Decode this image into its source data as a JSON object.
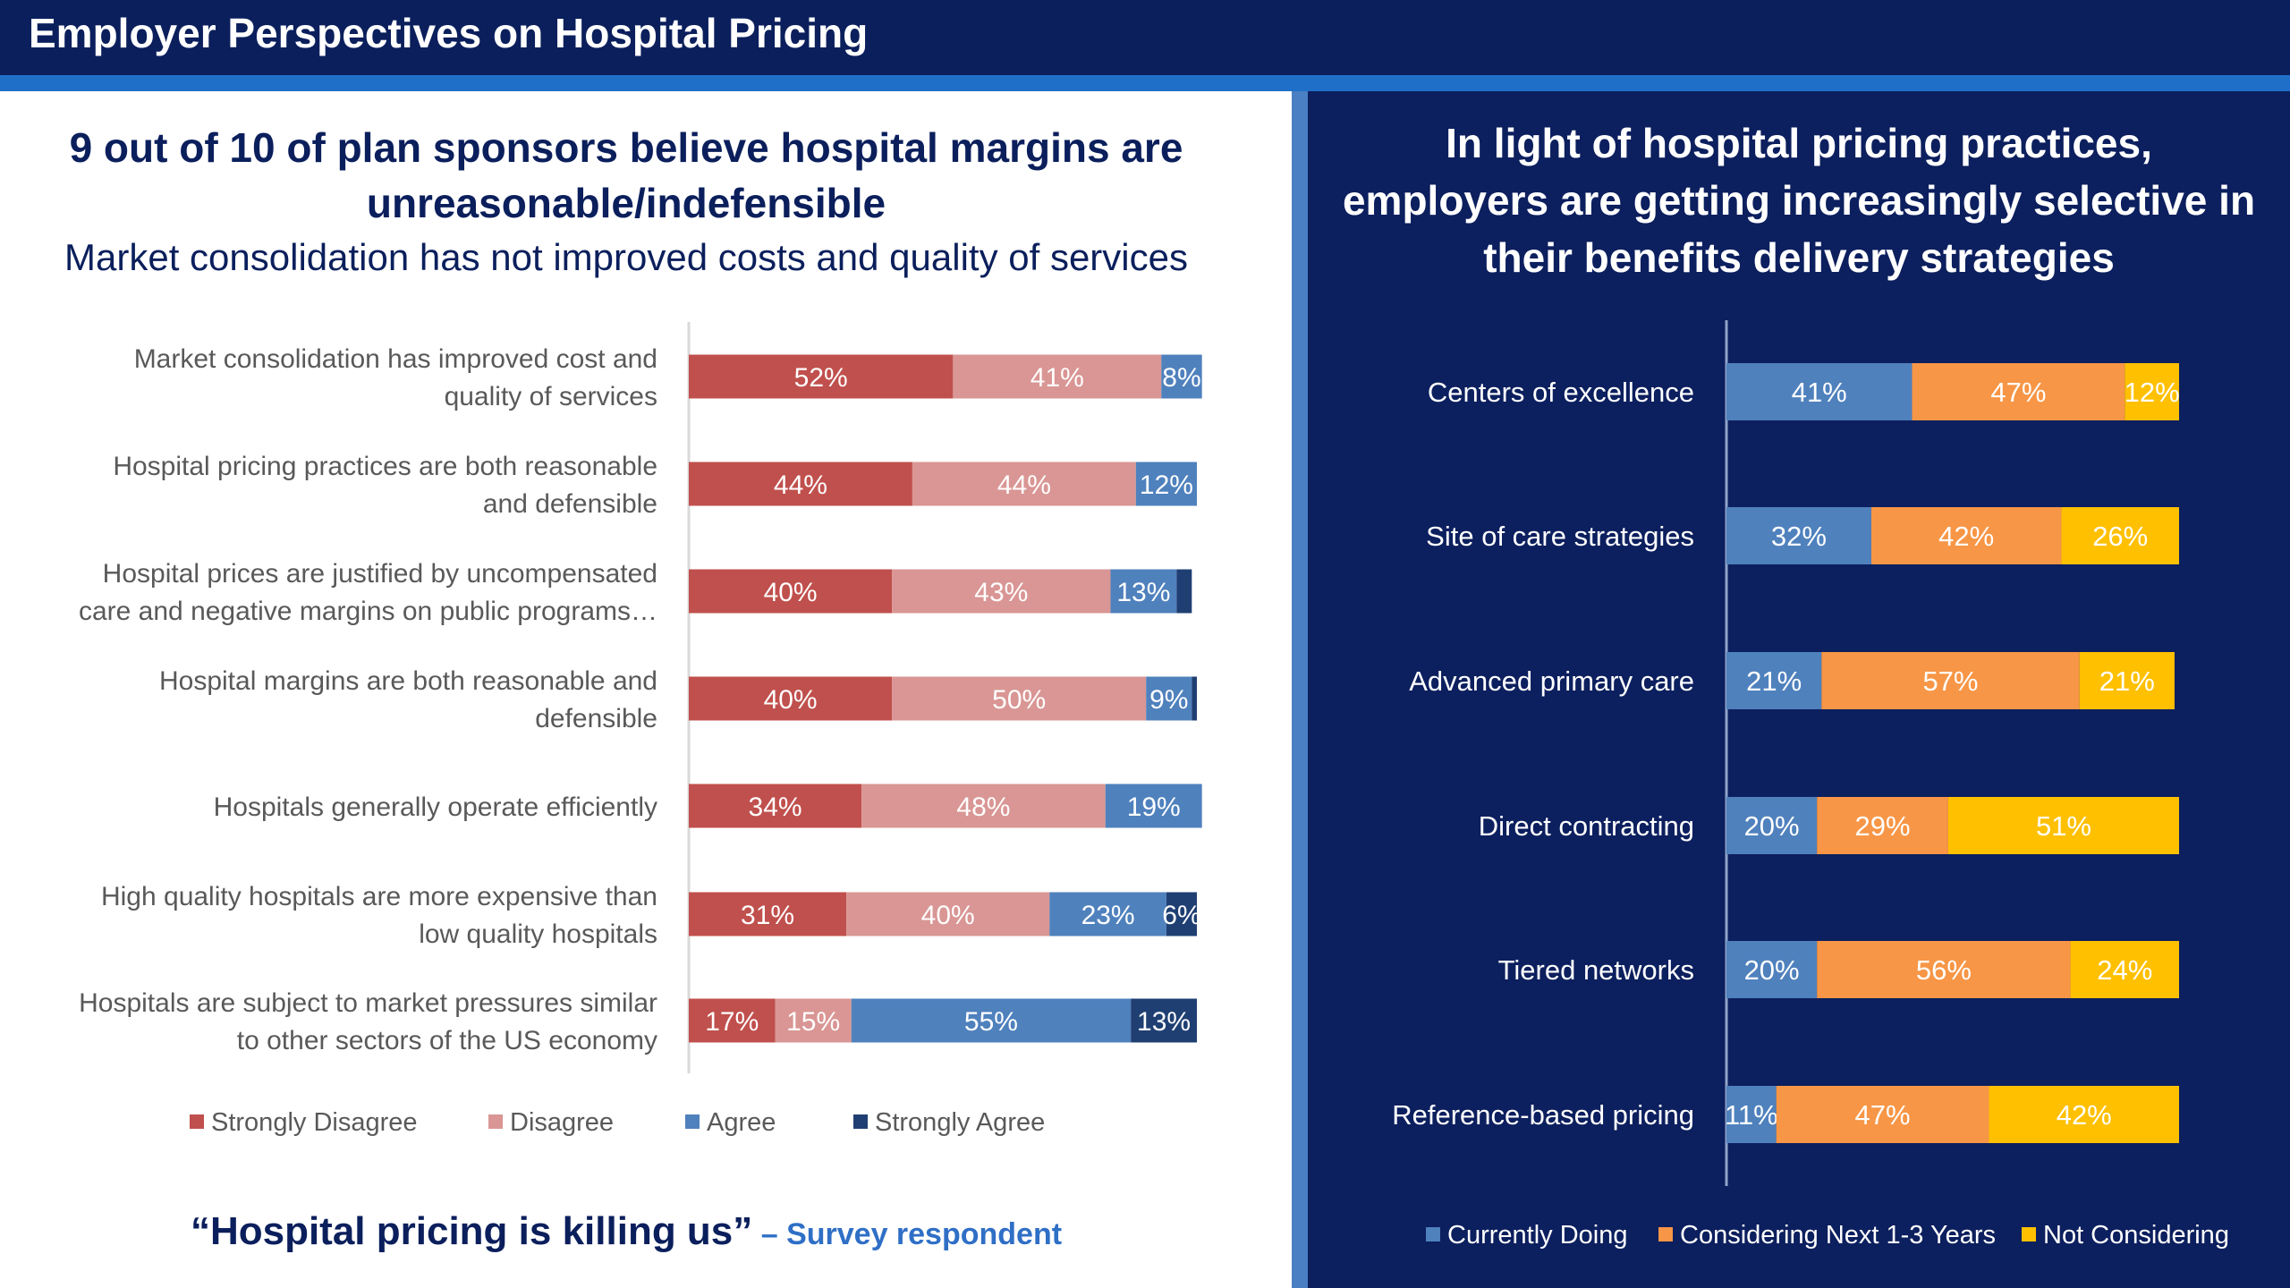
{
  "header": {
    "title": "Employer Perspectives on Hospital Pricing"
  },
  "left_panel": {
    "title_line1": "9 out of 10 of plan sponsors believe hospital margins are",
    "title_line2": "unreasonable/indefensible",
    "subtitle": "Market consolidation has not improved costs and quality of services",
    "quote": "“Hospital pricing is killing us”",
    "quote_source": " – Survey respondent"
  },
  "right_panel": {
    "title_line1": "In light of hospital pricing practices,",
    "title_line2": "employers are getting increasingly selective in",
    "title_line3": "their benefits delivery strategies"
  },
  "chart_data": [
    {
      "type": "bar",
      "orientation": "horizontal-stacked",
      "categories": [
        [
          "Market consolidation has improved cost and",
          "quality of services"
        ],
        [
          "Hospital pricing practices are both reasonable",
          "and defensible"
        ],
        [
          "Hospital prices are justified by uncompensated",
          "care and negative margins on public programs…"
        ],
        [
          "Hospital margins are both reasonable and",
          "defensible"
        ],
        [
          "Hospitals generally operate efficiently"
        ],
        [
          "High quality hospitals are more expensive than",
          "low quality hospitals"
        ],
        [
          "Hospitals are subject to market pressures similar",
          "to other sectors of the US economy"
        ]
      ],
      "series": [
        {
          "name": "Strongly Disagree",
          "color": "#c0504d",
          "values": [
            52,
            44,
            40,
            40,
            34,
            31,
            17
          ],
          "labels": [
            "52%",
            "44%",
            "40%",
            "40%",
            "34%",
            "31%",
            "17%"
          ]
        },
        {
          "name": "Disagree",
          "color": "#d99694",
          "values": [
            41,
            44,
            43,
            50,
            48,
            40,
            15
          ],
          "labels": [
            "41%",
            "44%",
            "43%",
            "50%",
            "48%",
            "40%",
            "15%"
          ]
        },
        {
          "name": "Agree",
          "color": "#4f81bd",
          "values": [
            8,
            12,
            13,
            9,
            19,
            23,
            55
          ],
          "labels": [
            "8%",
            "12%",
            "13%",
            "9%",
            "19%",
            "23%",
            "55%"
          ]
        },
        {
          "name": "Strongly Agree",
          "color": "#1f3f73",
          "values": [
            0,
            0,
            3,
            1,
            0,
            6,
            13
          ],
          "labels": [
            "",
            "",
            "",
            "",
            "",
            "6%",
            "13%"
          ]
        }
      ],
      "legend_position": "bottom",
      "grid": false
    },
    {
      "type": "bar",
      "orientation": "horizontal-stacked",
      "categories": [
        [
          "Centers of excellence"
        ],
        [
          "Site of care strategies"
        ],
        [
          "Advanced primary care"
        ],
        [
          "Direct contracting"
        ],
        [
          "Tiered networks"
        ],
        [
          "Reference-based pricing"
        ]
      ],
      "series": [
        {
          "name": "Currently Doing",
          "color": "#4f81bd",
          "values": [
            41,
            32,
            21,
            20,
            20,
            11
          ],
          "labels": [
            "41%",
            "32%",
            "21%",
            "20%",
            "20%",
            "11%"
          ]
        },
        {
          "name": "Considering Next 1-3 Years",
          "color": "#f79646",
          "values": [
            47,
            42,
            57,
            29,
            56,
            47
          ],
          "labels": [
            "47%",
            "42%",
            "57%",
            "29%",
            "56%",
            "47%"
          ]
        },
        {
          "name": "Not Considering",
          "color": "#ffc000",
          "values": [
            12,
            26,
            21,
            51,
            24,
            42
          ],
          "labels": [
            "12%",
            "26%",
            "21%",
            "51%",
            "24%",
            "42%"
          ]
        }
      ],
      "legend_position": "bottom",
      "grid": false
    }
  ]
}
